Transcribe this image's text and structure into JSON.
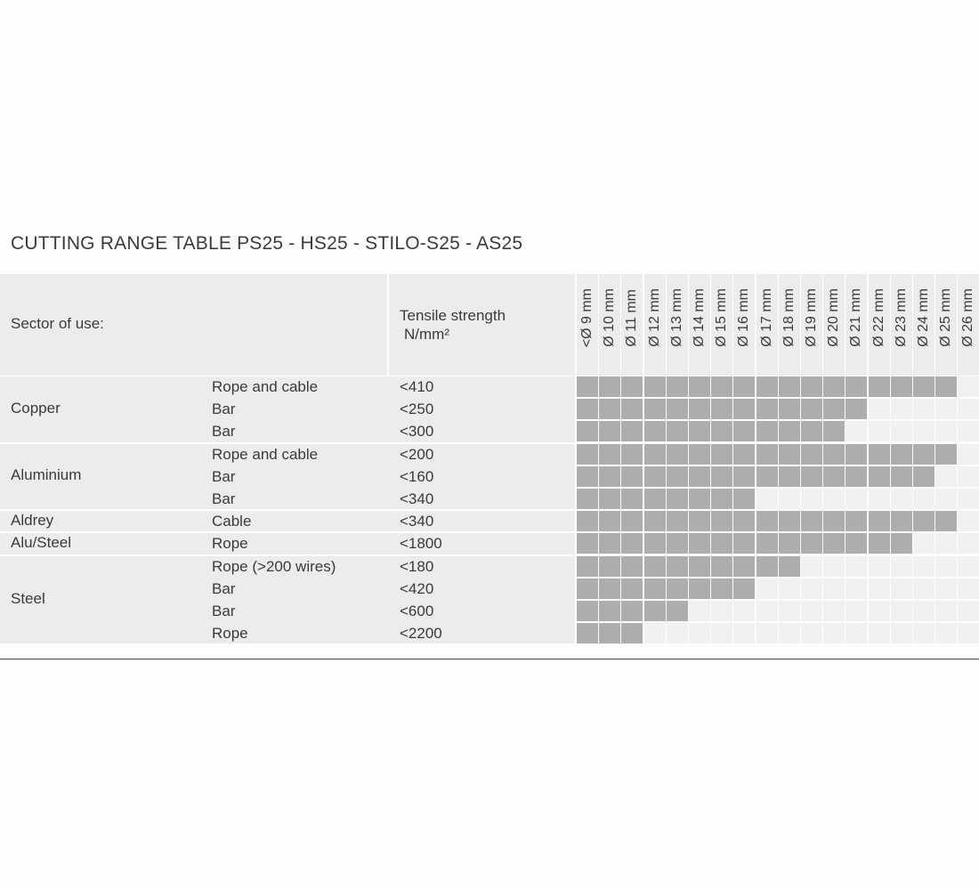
{
  "title": "CUTTING RANGE TABLE PS25 - HS25 - STILO-S25 - AS25",
  "header": {
    "sector": "Sector of use:",
    "tensile_line1": "Tensile strength",
    "tensile_line2": "N/mm²"
  },
  "diameters": [
    "<Ø 9 mm",
    "Ø 10 mm",
    "Ø 11 mm",
    "Ø 12 mm",
    "Ø 13 mm",
    "Ø 14 mm",
    "Ø 15 mm",
    "Ø 16 mm",
    "Ø 17 mm",
    "Ø 18 mm",
    "Ø 19 mm",
    "Ø 20 mm",
    "Ø 21 mm",
    "Ø 22 mm",
    "Ø 23 mm",
    "Ø 24 mm",
    "Ø 25 mm",
    "Ø 26 mm"
  ],
  "groups": [
    {
      "name": "Copper",
      "rows": [
        {
          "type": "Rope and cable",
          "tensile": "<410",
          "filled": 17
        },
        {
          "type": "Bar",
          "tensile": "<250",
          "filled": 13
        },
        {
          "type": "Bar",
          "tensile": "<300",
          "filled": 12
        }
      ]
    },
    {
      "name": "Aluminium",
      "rows": [
        {
          "type": "Rope and cable",
          "tensile": "<200",
          "filled": 17
        },
        {
          "type": "Bar",
          "tensile": "<160",
          "filled": 16
        },
        {
          "type": "Bar",
          "tensile": "<340",
          "filled": 8
        }
      ]
    },
    {
      "name": "Aldrey",
      "rows": [
        {
          "type": "Cable",
          "tensile": "<340",
          "filled": 17
        }
      ]
    },
    {
      "name": "Alu/Steel",
      "rows": [
        {
          "type": "Rope",
          "tensile": "<1800",
          "filled": 15
        }
      ]
    },
    {
      "name": "Steel",
      "rows": [
        {
          "type": "Rope (>200 wires)",
          "tensile": "<180",
          "filled": 10
        },
        {
          "type": "Bar",
          "tensile": "<420",
          "filled": 8
        },
        {
          "type": "Bar",
          "tensile": "<600",
          "filled": 5
        },
        {
          "type": "Rope",
          "tensile": "<2200",
          "filled": 3
        }
      ]
    }
  ],
  "colors": {
    "filled": "#adadad",
    "empty": "#f1f1f1",
    "header_bg": "#ececec"
  }
}
